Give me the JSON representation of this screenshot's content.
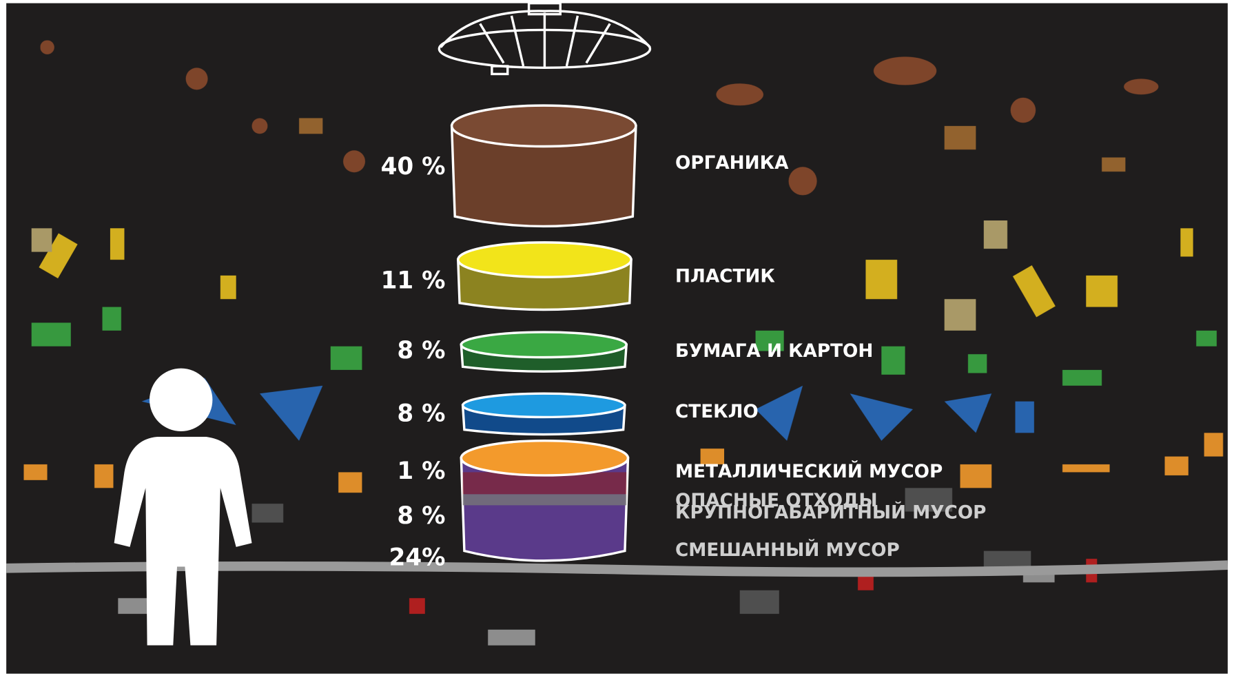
{
  "layers": [
    {
      "percent": "40 %",
      "label": "ОРГАНИКА"
    },
    {
      "percent": "11 %",
      "label": "ПЛАСТИК"
    },
    {
      "percent": "8 %",
      "label": "БУМАГА И КАРТОН"
    },
    {
      "percent": "8 %",
      "label": "СТЕКЛО"
    },
    {
      "percent": "1 %",
      "label": "МЕТАЛЛИЧЕСКИЙ МУСОР"
    },
    {
      "percent": "8 %",
      "label": "КРУПНОГАБАРИТНЫЙ МУСОР"
    },
    {
      "percent": "24%",
      "label": "СМЕШАННЫЙ МУСОР"
    }
  ],
  "extra_label": "ОПАСНЫЕ ОТХОДЫ"
}
